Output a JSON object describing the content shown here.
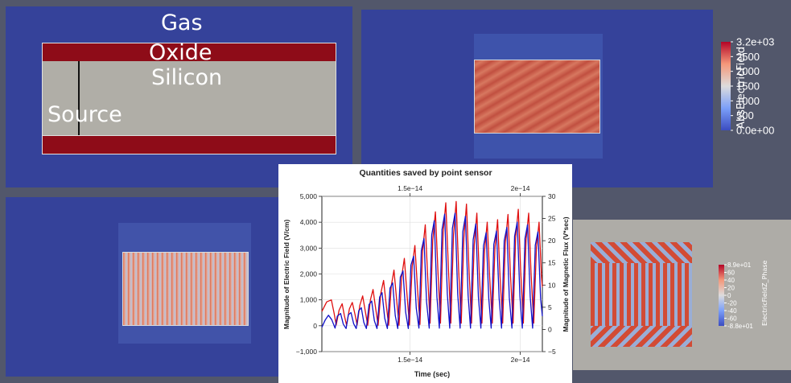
{
  "geometry_panel": {
    "labels": {
      "gas": "Gas",
      "oxide": "Oxide",
      "silicon": "Silicon",
      "source": "Source"
    },
    "colors": {
      "background": "#35429a",
      "oxide": "#8e0c18",
      "silicon": "#b0aea7"
    }
  },
  "abs_field_panel": {
    "colorbar": {
      "title": "AbsElectricField",
      "ticks": [
        "3.2e+03",
        "2500",
        "2000",
        "1500",
        "1000",
        "500",
        "0.0e+00"
      ],
      "colors": [
        "#b40426",
        "#f4987a",
        "#dddcdc",
        "#7b9ff9",
        "#3b4cc0"
      ]
    }
  },
  "phase_panel": {
    "colorbar": {
      "title": "ElectricFieldZ_Phase",
      "ticks": [
        "8.9e+01",
        "60",
        "40",
        "20",
        "0",
        "-20",
        "-40",
        "-60",
        "-8.8e+01"
      ]
    },
    "colors": {
      "background": "#aeaca7",
      "stripe_red": "#d24b35",
      "stripe_blue": "#9aaed6"
    }
  },
  "chart_data": {
    "type": "line",
    "title": "Quantities saved by point sensor",
    "xlabel": "Time (sec)",
    "ylabel": "Magnitude of Electric Field (V/cm)",
    "y2label": "Magnitude of Magnetic Flux (V*sec)",
    "xlim": [
      1.1e-14,
      2.1e-14
    ],
    "ylim": [
      -1000,
      5000
    ],
    "y2lim": [
      -5,
      30
    ],
    "x_ticks": [
      {
        "value": 1.5e-14,
        "label": "1.5e−14"
      },
      {
        "value": 2e-14,
        "label": "2e−14"
      }
    ],
    "y_ticks": [
      {
        "value": -1000,
        "label": "−1,000"
      },
      {
        "value": 0,
        "label": "0"
      },
      {
        "value": 1000,
        "label": "1,000"
      },
      {
        "value": 2000,
        "label": "2,000"
      },
      {
        "value": 3000,
        "label": "3,000"
      },
      {
        "value": 4000,
        "label": "4,000"
      },
      {
        "value": 5000,
        "label": "5,000"
      }
    ],
    "y2_ticks": [
      {
        "value": -5,
        "label": "−5"
      },
      {
        "value": 0,
        "label": "0"
      },
      {
        "value": 5,
        "label": "5"
      },
      {
        "value": 10,
        "label": "10"
      },
      {
        "value": 15,
        "label": "15"
      },
      {
        "value": 20,
        "label": "20"
      },
      {
        "value": 25,
        "label": "25"
      },
      {
        "value": 30,
        "label": "30"
      }
    ],
    "grid": true,
    "series": [
      {
        "color": "#e01010",
        "axis": "left",
        "points": [
          [
            1.1e-14,
            550
          ],
          [
            1.122e-14,
            920
          ],
          [
            1.143e-14,
            1000
          ],
          [
            1.155e-14,
            500
          ],
          [
            1.165e-14,
            30
          ],
          [
            1.178e-14,
            600
          ],
          [
            1.192e-14,
            850
          ],
          [
            1.202e-14,
            400
          ],
          [
            1.212e-14,
            20
          ],
          [
            1.225e-14,
            650
          ],
          [
            1.238e-14,
            900
          ],
          [
            1.25e-14,
            450
          ],
          [
            1.26e-14,
            30
          ],
          [
            1.272e-14,
            780
          ],
          [
            1.285e-14,
            1150
          ],
          [
            1.297e-14,
            550
          ],
          [
            1.308e-14,
            20
          ],
          [
            1.32e-14,
            1000
          ],
          [
            1.332e-14,
            1400
          ],
          [
            1.344e-14,
            650
          ],
          [
            1.355e-14,
            20
          ],
          [
            1.367e-14,
            1250
          ],
          [
            1.38e-14,
            1750
          ],
          [
            1.392e-14,
            800
          ],
          [
            1.403e-14,
            20
          ],
          [
            1.415e-14,
            1550
          ],
          [
            1.427e-14,
            2150
          ],
          [
            1.439e-14,
            1000
          ],
          [
            1.45e-14,
            20
          ],
          [
            1.462e-14,
            1900
          ],
          [
            1.474e-14,
            2600
          ],
          [
            1.486e-14,
            1200
          ],
          [
            1.497e-14,
            30
          ],
          [
            1.51e-14,
            2300
          ],
          [
            1.522e-14,
            3100
          ],
          [
            1.534e-14,
            1400
          ],
          [
            1.545e-14,
            50
          ],
          [
            1.557e-14,
            2900
          ],
          [
            1.569e-14,
            3900
          ],
          [
            1.58e-14,
            1900
          ],
          [
            1.591e-14,
            100
          ],
          [
            1.603e-14,
            3300
          ],
          [
            1.615e-14,
            4400
          ],
          [
            1.627e-14,
            2000
          ],
          [
            1.638e-14,
            100
          ],
          [
            1.65e-14,
            3600
          ],
          [
            1.662e-14,
            4750
          ],
          [
            1.674e-14,
            2200
          ],
          [
            1.685e-14,
            100
          ],
          [
            1.697e-14,
            3500
          ],
          [
            1.709e-14,
            4800
          ],
          [
            1.72e-14,
            2200
          ],
          [
            1.732e-14,
            100
          ],
          [
            1.744e-14,
            3400
          ],
          [
            1.756e-14,
            4700
          ],
          [
            1.767e-14,
            2200
          ],
          [
            1.779e-14,
            100
          ],
          [
            1.791e-14,
            3100
          ],
          [
            1.803e-14,
            4350
          ],
          [
            1.814e-14,
            2000
          ],
          [
            1.826e-14,
            100
          ],
          [
            1.838e-14,
            2900
          ],
          [
            1.85e-14,
            4000
          ],
          [
            1.861e-14,
            1900
          ],
          [
            1.873e-14,
            100
          ],
          [
            1.885e-14,
            3000
          ],
          [
            1.897e-14,
            4100
          ],
          [
            1.908e-14,
            1900
          ],
          [
            1.92e-14,
            100
          ],
          [
            1.932e-14,
            3200
          ],
          [
            1.944e-14,
            4300
          ],
          [
            1.955e-14,
            2000
          ],
          [
            1.967e-14,
            100
          ],
          [
            1.979e-14,
            3400
          ],
          [
            1.991e-14,
            4500
          ],
          [
            2.002e-14,
            2100
          ],
          [
            2.014e-14,
            100
          ],
          [
            2.026e-14,
            3300
          ],
          [
            2.038e-14,
            4350
          ],
          [
            2.049e-14,
            2000
          ],
          [
            2.061e-14,
            100
          ],
          [
            2.073e-14,
            3000
          ],
          [
            2.085e-14,
            4000
          ],
          [
            2.096e-14,
            1900
          ],
          [
            2.1e-14,
            1500
          ]
        ]
      },
      {
        "color": "#1010c8",
        "axis": "right",
        "points": [
          [
            1.1e-14,
            0.5
          ],
          [
            1.115e-14,
            2.1
          ],
          [
            1.13e-14,
            3.2
          ],
          [
            1.145e-14,
            2.2
          ],
          [
            1.16e-14,
            0.3
          ],
          [
            1.17e-14,
            3.0
          ],
          [
            1.185e-14,
            3.6
          ],
          [
            1.197e-14,
            1.2
          ],
          [
            1.21e-14,
            0.2
          ],
          [
            1.22e-14,
            3.3
          ],
          [
            1.232e-14,
            3.8
          ],
          [
            1.244e-14,
            1.3
          ],
          [
            1.256e-14,
            0.2
          ],
          [
            1.267e-14,
            4.2
          ],
          [
            1.279e-14,
            4.9
          ],
          [
            1.29e-14,
            1.6
          ],
          [
            1.302e-14,
            0.2
          ],
          [
            1.314e-14,
            5.6
          ],
          [
            1.326e-14,
            6.4
          ],
          [
            1.338e-14,
            2.0
          ],
          [
            1.35e-14,
            0.2
          ],
          [
            1.362e-14,
            7.3
          ],
          [
            1.373e-14,
            8.3
          ],
          [
            1.385e-14,
            2.5
          ],
          [
            1.397e-14,
            0.2
          ],
          [
            1.409e-14,
            9.3
          ],
          [
            1.421e-14,
            10.5
          ],
          [
            1.433e-14,
            3.1
          ],
          [
            1.444e-14,
            0.2
          ],
          [
            1.456e-14,
            11.8
          ],
          [
            1.468e-14,
            13.2
          ],
          [
            1.48e-14,
            3.9
          ],
          [
            1.492e-14,
            0.2
          ],
          [
            1.504e-14,
            14.5
          ],
          [
            1.516e-14,
            16.5
          ],
          [
            1.528e-14,
            4.8
          ],
          [
            1.54e-14,
            0.3
          ],
          [
            1.551e-14,
            17.8
          ],
          [
            1.563e-14,
            20.5
          ],
          [
            1.575e-14,
            6.2
          ],
          [
            1.587e-14,
            0.3
          ],
          [
            1.598e-14,
            21.3
          ],
          [
            1.61e-14,
            24.5
          ],
          [
            1.622e-14,
            7.3
          ],
          [
            1.633e-14,
            0.3
          ],
          [
            1.645e-14,
            22.5
          ],
          [
            1.657e-14,
            26.0
          ],
          [
            1.669e-14,
            8.0
          ],
          [
            1.68e-14,
            0.3
          ],
          [
            1.692e-14,
            22.8
          ],
          [
            1.704e-14,
            26.2
          ],
          [
            1.716e-14,
            8.0
          ],
          [
            1.727e-14,
            0.3
          ],
          [
            1.739e-14,
            22.0
          ],
          [
            1.751e-14,
            25.5
          ],
          [
            1.763e-14,
            7.8
          ],
          [
            1.774e-14,
            0.3
          ],
          [
            1.786e-14,
            20.2
          ],
          [
            1.798e-14,
            23.8
          ],
          [
            1.81e-14,
            7.4
          ],
          [
            1.821e-14,
            0.3
          ],
          [
            1.833e-14,
            18.8
          ],
          [
            1.845e-14,
            21.8
          ],
          [
            1.857e-14,
            7.0
          ],
          [
            1.868e-14,
            0.3
          ],
          [
            1.88e-14,
            19.2
          ],
          [
            1.892e-14,
            22.2
          ],
          [
            1.904e-14,
            7.0
          ],
          [
            1.915e-14,
            0.3
          ],
          [
            1.927e-14,
            20.0
          ],
          [
            1.939e-14,
            23.0
          ],
          [
            1.95e-14,
            7.2
          ],
          [
            1.962e-14,
            0.3
          ],
          [
            1.974e-14,
            21.0
          ],
          [
            1.986e-14,
            24.2
          ],
          [
            1.998e-14,
            7.5
          ],
          [
            2.009e-14,
            0.3
          ],
          [
            2.021e-14,
            20.5
          ],
          [
            2.033e-14,
            23.6
          ],
          [
            2.045e-14,
            7.4
          ],
          [
            2.056e-14,
            0.3
          ],
          [
            2.068e-14,
            19.0
          ],
          [
            2.08e-14,
            22.0
          ],
          [
            2.092e-14,
            7.0
          ],
          [
            2.1e-14,
            3.0
          ]
        ]
      }
    ]
  }
}
